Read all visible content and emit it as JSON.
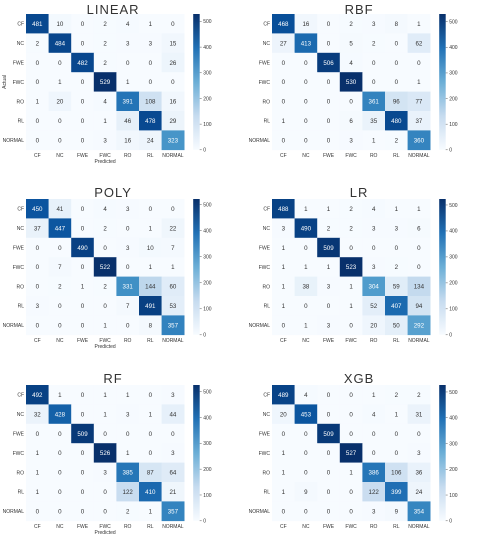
{
  "chart_data": [
    {
      "type": "heatmap",
      "title": "LINEAR",
      "xlabel": "Predicted",
      "ylabel": "Actual",
      "categories": [
        "CF",
        "NC",
        "FWE",
        "FWC",
        "RO",
        "RL",
        "NORMAL"
      ],
      "matrix": [
        [
          481,
          10,
          0,
          2,
          4,
          1,
          0
        ],
        [
          2,
          484,
          0,
          2,
          3,
          3,
          15
        ],
        [
          0,
          0,
          482,
          2,
          0,
          0,
          26
        ],
        [
          0,
          1,
          0,
          529,
          1,
          0,
          0
        ],
        [
          1,
          20,
          0,
          4,
          391,
          108,
          16
        ],
        [
          0,
          0,
          0,
          1,
          46,
          478,
          29
        ],
        [
          0,
          0,
          0,
          3,
          16,
          24,
          323
        ]
      ],
      "colorbar_ticks": [
        0,
        100,
        200,
        300,
        400,
        500
      ],
      "vmax": 529
    },
    {
      "type": "heatmap",
      "title": "RBF",
      "xlabel": "",
      "ylabel": "",
      "categories": [
        "CF",
        "NC",
        "FWE",
        "FWC",
        "RO",
        "RL",
        "NORMAL"
      ],
      "matrix": [
        [
          468,
          16,
          0,
          2,
          3,
          8,
          1
        ],
        [
          27,
          413,
          0,
          5,
          2,
          0,
          62
        ],
        [
          0,
          0,
          506,
          4,
          0,
          0,
          0
        ],
        [
          0,
          0,
          0,
          530,
          0,
          0,
          1
        ],
        [
          0,
          0,
          0,
          0,
          361,
          96,
          77
        ],
        [
          1,
          0,
          0,
          6,
          35,
          480,
          37
        ],
        [
          0,
          0,
          0,
          3,
          1,
          2,
          360
        ]
      ],
      "colorbar_ticks": [
        0,
        100,
        200,
        300,
        400,
        500
      ],
      "vmax": 530
    },
    {
      "type": "heatmap",
      "title": "POLY",
      "xlabel": "Predicted",
      "ylabel": "",
      "categories": [
        "CF",
        "NC",
        "FWE",
        "FWC",
        "RO",
        "RL",
        "NORMAL"
      ],
      "matrix": [
        [
          450,
          41,
          0,
          4,
          3,
          0,
          0
        ],
        [
          37,
          447,
          0,
          2,
          0,
          1,
          22
        ],
        [
          0,
          0,
          490,
          0,
          3,
          10,
          7
        ],
        [
          0,
          7,
          0,
          522,
          0,
          1,
          1
        ],
        [
          0,
          2,
          1,
          2,
          331,
          144,
          60
        ],
        [
          3,
          0,
          0,
          0,
          7,
          491,
          53
        ],
        [
          0,
          0,
          0,
          1,
          0,
          8,
          357
        ]
      ],
      "colorbar_ticks": [
        0,
        100,
        200,
        300,
        400,
        500
      ],
      "vmax": 522
    },
    {
      "type": "heatmap",
      "title": "LR",
      "xlabel": "",
      "ylabel": "",
      "categories": [
        "CF",
        "NC",
        "FWE",
        "FWC",
        "RO",
        "RL",
        "NORMAL"
      ],
      "matrix": [
        [
          488,
          1,
          1,
          2,
          4,
          1,
          1
        ],
        [
          3,
          490,
          2,
          2,
          3,
          3,
          6
        ],
        [
          1,
          0,
          509,
          0,
          0,
          0,
          0
        ],
        [
          1,
          1,
          1,
          523,
          3,
          2,
          0
        ],
        [
          1,
          38,
          3,
          1,
          304,
          59,
          134
        ],
        [
          1,
          0,
          0,
          1,
          52,
          407,
          94
        ],
        [
          0,
          1,
          3,
          0,
          20,
          50,
          292
        ]
      ],
      "colorbar_ticks": [
        0,
        100,
        200,
        300,
        400,
        500
      ],
      "vmax": 523
    },
    {
      "type": "heatmap",
      "title": "RF",
      "xlabel": "Predicted",
      "ylabel": "",
      "categories": [
        "CF",
        "NC",
        "FWE",
        "FWC",
        "RO",
        "RL",
        "NORMAL"
      ],
      "matrix": [
        [
          492,
          1,
          0,
          1,
          1,
          0,
          3
        ],
        [
          32,
          428,
          0,
          1,
          3,
          1,
          44
        ],
        [
          0,
          0,
          509,
          0,
          0,
          0,
          0
        ],
        [
          1,
          0,
          0,
          526,
          1,
          0,
          3
        ],
        [
          1,
          0,
          0,
          3,
          385,
          87,
          64
        ],
        [
          1,
          0,
          0,
          0,
          122,
          410,
          21
        ],
        [
          0,
          0,
          0,
          0,
          2,
          1,
          357
        ]
      ],
      "colorbar_ticks": [
        0,
        100,
        200,
        300,
        400,
        500
      ],
      "vmax": 526
    },
    {
      "type": "heatmap",
      "title": "XGB",
      "xlabel": "",
      "ylabel": "",
      "categories": [
        "CF",
        "NC",
        "FWE",
        "FWC",
        "RO",
        "RL",
        "NORMAL"
      ],
      "matrix": [
        [
          489,
          4,
          0,
          0,
          1,
          2,
          2
        ],
        [
          20,
          453,
          0,
          0,
          4,
          1,
          31
        ],
        [
          0,
          0,
          509,
          0,
          0,
          0,
          0
        ],
        [
          1,
          0,
          0,
          527,
          0,
          0,
          3
        ],
        [
          1,
          0,
          0,
          1,
          386,
          106,
          36
        ],
        [
          1,
          9,
          0,
          0,
          122,
          399,
          24
        ],
        [
          0,
          0,
          0,
          0,
          3,
          9,
          354
        ]
      ],
      "colorbar_ticks": [
        0,
        100,
        200,
        300,
        400,
        500
      ],
      "vmax": 527
    }
  ]
}
